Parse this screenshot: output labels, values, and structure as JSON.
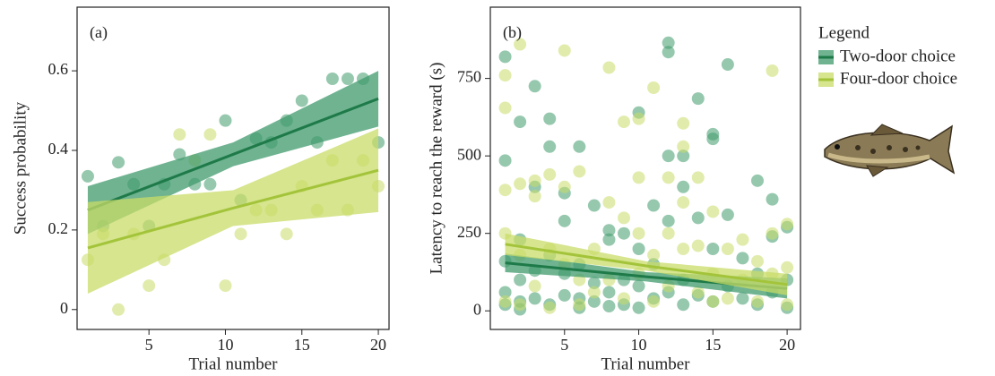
{
  "chart_data": [
    {
      "type": "scatter",
      "panel_label": "(a)",
      "x_label": "Trial number",
      "y_label": "Success probability",
      "xlim": [
        0.3,
        20.7
      ],
      "ylim": [
        -0.05,
        0.76
      ],
      "xticks": [
        5,
        10,
        15,
        20
      ],
      "yticks": [
        0,
        0.2,
        0.4,
        0.6
      ],
      "series": [
        {
          "color": "#3f9a6c",
          "line_color": "#1e7a48",
          "x": [
            1,
            2,
            3,
            4,
            5,
            6,
            7,
            8,
            9,
            10,
            11,
            12,
            13,
            14,
            15,
            16,
            17,
            18,
            19,
            20
          ],
          "values": [
            0.335,
            0.21,
            0.37,
            0.315,
            0.21,
            0.315,
            0.39,
            0.315,
            0.315,
            0.475,
            0.275,
            0.43,
            0.42,
            0.475,
            0.525,
            0.42,
            0.58,
            0.58,
            0.58,
            0.42
          ],
          "fit": {
            "x": [
              1,
              10.5,
              20
            ],
            "y": [
              0.25,
              0.39,
              0.53
            ],
            "lower": [
              0.19,
              0.36,
              0.46
            ],
            "upper": [
              0.31,
              0.42,
              0.6
            ]
          }
        },
        {
          "color": "#c8dc68",
          "line_color": "#a3c43a",
          "x": [
            1,
            2,
            3,
            4,
            5,
            6,
            7,
            8,
            9,
            10,
            11,
            12,
            13,
            14,
            15,
            16,
            17,
            18,
            19,
            20
          ],
          "values": [
            0.125,
            0.19,
            0,
            0.19,
            0.06,
            0.125,
            0.44,
            0.375,
            0.44,
            0.06,
            0.19,
            0.25,
            0.25,
            0.19,
            0.31,
            0.25,
            0.375,
            0.25,
            0.375,
            0.31
          ],
          "fit": {
            "x": [
              1,
              10.5,
              20
            ],
            "y": [
              0.155,
              0.255,
              0.35
            ],
            "lower": [
              0.04,
              0.21,
              0.245
            ],
            "upper": [
              0.27,
              0.3,
              0.455
            ]
          }
        }
      ]
    },
    {
      "type": "scatter",
      "panel_label": "(b)",
      "x_label": "Trial number",
      "y_label": "Latency to reach the reward (s)",
      "xlim": [
        0,
        20.9
      ],
      "ylim": [
        -60,
        980
      ],
      "xticks": [
        5,
        10,
        15,
        20
      ],
      "yticks": [
        0,
        250,
        500,
        750
      ],
      "legend": {
        "title": "Legend",
        "position": "right outside"
      },
      "series": [
        {
          "name": "Two-door choice",
          "color": "#3f9a6c",
          "line_color": "#1e7a48",
          "x": [
            1,
            1,
            1,
            1,
            1,
            2,
            2,
            2,
            2,
            2,
            3,
            3,
            3,
            3,
            4,
            4,
            4,
            4,
            5,
            5,
            5,
            5,
            6,
            6,
            6,
            6,
            7,
            7,
            7,
            8,
            8,
            8,
            8,
            9,
            9,
            9,
            10,
            10,
            10,
            10,
            11,
            11,
            11,
            12,
            12,
            12,
            12,
            12,
            13,
            13,
            13,
            13,
            14,
            14,
            14,
            15,
            15,
            15,
            15,
            16,
            16,
            16,
            17,
            17,
            18,
            18,
            18,
            19,
            19,
            19,
            20,
            20,
            20
          ],
          "values": [
            820,
            485,
            160,
            60,
            20,
            230,
            610,
            100,
            30,
            5,
            725,
            400,
            130,
            40,
            620,
            530,
            180,
            20,
            380,
            290,
            120,
            50,
            530,
            150,
            40,
            10,
            340,
            90,
            30,
            260,
            230,
            60,
            15,
            250,
            100,
            20,
            640,
            200,
            80,
            10,
            340,
            150,
            40,
            865,
            835,
            500,
            290,
            60,
            500,
            400,
            100,
            20,
            685,
            300,
            50,
            570,
            555,
            200,
            30,
            795,
            310,
            80,
            170,
            40,
            420,
            120,
            20,
            360,
            240,
            60,
            270,
            100,
            10
          ],
          "fit": {
            "x": [
              1,
              10.5,
              20
            ],
            "y": [
              155,
              110,
              72
            ],
            "lower": [
              125,
              95,
              40
            ],
            "upper": [
              185,
              125,
              105
            ]
          }
        },
        {
          "name": "Four-door choice",
          "color": "#c8dc68",
          "line_color": "#a3c43a",
          "x": [
            1,
            1,
            1,
            1,
            1,
            2,
            2,
            2,
            2,
            3,
            3,
            3,
            4,
            4,
            4,
            5,
            5,
            5,
            6,
            6,
            6,
            7,
            7,
            8,
            8,
            8,
            9,
            9,
            9,
            10,
            10,
            10,
            10,
            11,
            11,
            11,
            12,
            12,
            12,
            13,
            13,
            13,
            13,
            14,
            14,
            14,
            15,
            15,
            15,
            16,
            16,
            17,
            17,
            18,
            18,
            19,
            19,
            19,
            20,
            20,
            20
          ],
          "values": [
            760,
            655,
            390,
            250,
            30,
            860,
            410,
            180,
            20,
            420,
            370,
            80,
            440,
            200,
            10,
            840,
            400,
            150,
            450,
            100,
            20,
            200,
            60,
            785,
            350,
            100,
            610,
            300,
            40,
            620,
            430,
            250,
            120,
            720,
            180,
            30,
            430,
            250,
            80,
            605,
            530,
            350,
            200,
            430,
            210,
            60,
            320,
            120,
            30,
            200,
            40,
            230,
            100,
            160,
            30,
            775,
            250,
            120,
            280,
            140,
            20
          ],
          "fit": {
            "x": [
              1,
              10.5,
              20
            ],
            "y": [
              215,
              145,
              85
            ],
            "lower": [
              180,
              130,
              50
            ],
            "upper": [
              250,
              160,
              120
            ]
          }
        }
      ]
    }
  ]
}
